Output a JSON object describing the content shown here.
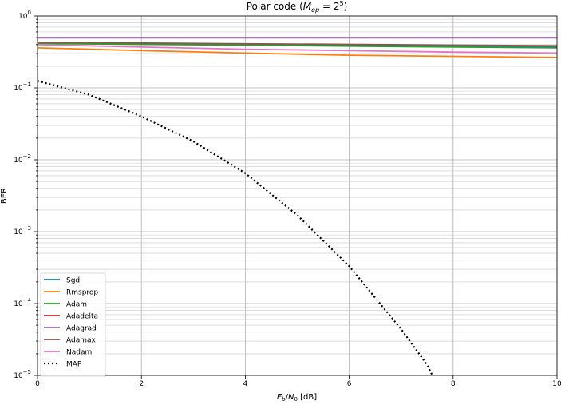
{
  "chart_data": {
    "type": "line",
    "title": "Polar code (M_ep = 2^5)",
    "title_parts": {
      "prefix": "Polar code (",
      "m": "M",
      "sub": "ep",
      "eq": " = 2",
      "sup": "5",
      "suffix": ")"
    },
    "xlabel": "E_b/N_0 [dB]",
    "xlabel_parts": {
      "e": "E",
      "e_sub": "b",
      "slash": "/",
      "n": "N",
      "n_sub": "0",
      "unit": " [dB]"
    },
    "ylabel": "BER",
    "xlim": [
      0,
      10
    ],
    "ylim": [
      1e-05,
      1
    ],
    "yscale": "log",
    "grid": "major and minor",
    "legend_position": "lower-left",
    "xticks": [
      "0",
      "2",
      "4",
      "6",
      "8",
      "10"
    ],
    "yticks": [
      {
        "base": "10",
        "exp": "0"
      },
      {
        "base": "10",
        "exp": "−1"
      },
      {
        "base": "10",
        "exp": "−2"
      },
      {
        "base": "10",
        "exp": "−3"
      },
      {
        "base": "10",
        "exp": "−4"
      },
      {
        "base": "10",
        "exp": "−5"
      }
    ],
    "series": [
      {
        "name": "Sgd",
        "color": "#1f77b4",
        "style": "solid",
        "x": [
          0,
          10
        ],
        "y": [
          0.42,
          0.37
        ]
      },
      {
        "name": "Rmsprop",
        "color": "#ff7f0e",
        "style": "solid",
        "x": [
          0,
          2,
          4,
          6,
          8,
          10
        ],
        "y": [
          0.36,
          0.33,
          0.305,
          0.285,
          0.275,
          0.265
        ]
      },
      {
        "name": "Adam",
        "color": "#2ca02c",
        "style": "solid",
        "x": [
          0,
          10
        ],
        "y": [
          0.415,
          0.36
        ]
      },
      {
        "name": "Adadelta",
        "color": "#d62728",
        "style": "solid",
        "x": [
          0,
          10
        ],
        "y": [
          0.5,
          0.5
        ]
      },
      {
        "name": "Adagrad",
        "color": "#9467bd",
        "style": "solid",
        "x": [
          0,
          10
        ],
        "y": [
          0.497,
          0.497
        ]
      },
      {
        "name": "Adamax",
        "color": "#8c564b",
        "style": "solid",
        "x": [
          0,
          10
        ],
        "y": [
          0.43,
          0.385
        ]
      },
      {
        "name": "Nadam",
        "color": "#e377c2",
        "style": "solid",
        "x": [
          0,
          2,
          4,
          6,
          8,
          10
        ],
        "y": [
          0.4,
          0.37,
          0.345,
          0.33,
          0.315,
          0.305
        ]
      },
      {
        "name": "MAP",
        "color": "#000000",
        "style": "dotted",
        "x": [
          0,
          1,
          2,
          3,
          4,
          5,
          6,
          7,
          7.5,
          7.6
        ],
        "y": [
          0.125,
          0.08,
          0.04,
          0.018,
          0.0065,
          0.0017,
          0.00033,
          4.4e-05,
          1.4e-05,
          1e-05
        ]
      }
    ]
  }
}
